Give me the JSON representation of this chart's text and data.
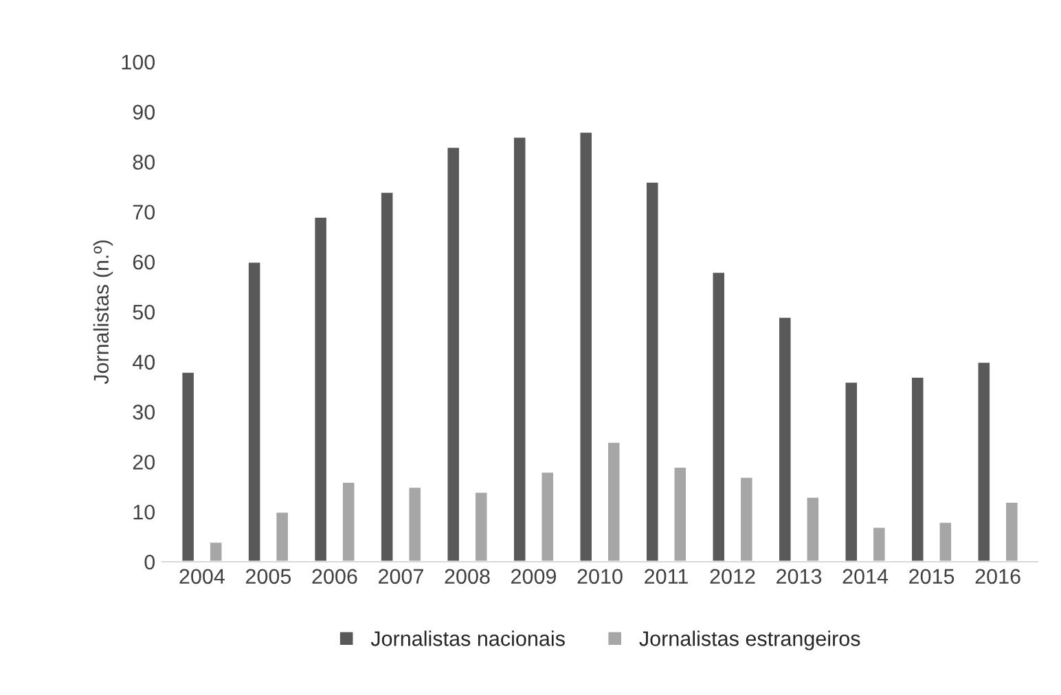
{
  "chart_data": {
    "type": "bar",
    "ylabel": "Jornalistas (n.º)",
    "categories": [
      "2004",
      "2005",
      "2006",
      "2007",
      "2008",
      "2009",
      "2010",
      "2011",
      "2012",
      "2013",
      "2014",
      "2015",
      "2016"
    ],
    "series": [
      {
        "name": "Jornalistas nacionais",
        "color": "#595959",
        "values": [
          38,
          60,
          69,
          74,
          83,
          85,
          86,
          76,
          58,
          49,
          36,
          37,
          40
        ]
      },
      {
        "name": "Jornalistas estrangeiros",
        "color": "#a6a6a6",
        "values": [
          4,
          10,
          16,
          15,
          14,
          18,
          24,
          19,
          17,
          13,
          7,
          8,
          12
        ]
      }
    ],
    "ylim": [
      0,
      100
    ],
    "yticks": [
      0,
      10,
      20,
      30,
      40,
      50,
      60,
      70,
      80,
      90,
      100
    ],
    "grid": false,
    "legend": "bottom"
  }
}
